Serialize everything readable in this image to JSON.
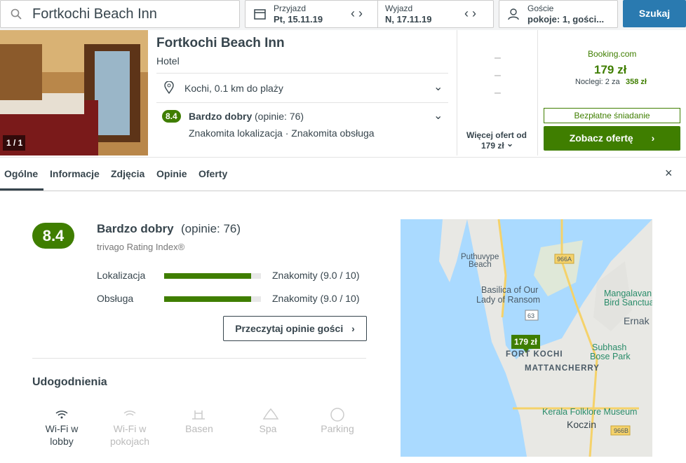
{
  "search": {
    "query": "Fortkochi Beach Inn",
    "checkin_label": "Przyjazd",
    "checkin": "Pt, 15.11.19",
    "checkout_label": "Wyjazd",
    "checkout": "N, 17.11.19",
    "guests_label": "Goście",
    "guests": "pokoje: 1, gości...",
    "button": "Szukaj"
  },
  "hotel": {
    "image_counter": "1 / 1",
    "name": "Fortkochi Beach Inn",
    "type": "Hotel",
    "location": "Kochi, 0.1 km do plaży",
    "rating": "8.4",
    "rating_text": "Bardzo dobry",
    "reviews": "(opinie: 76)",
    "highlights": "Znakomita lokalizacja · Znakomita obsługa",
    "more_offers": "Więcej ofert od",
    "more_price": "179 zł"
  },
  "offer": {
    "provider": "Booking.com",
    "price": "179 zł",
    "nights": "Noclegi: 2 za",
    "total": "358 zł",
    "perk": "Bezpłatne śniadanie",
    "button": "Zobacz ofertę"
  },
  "tabs": [
    "Ogólne",
    "Informacje",
    "Zdjęcia",
    "Opinie",
    "Oferty"
  ],
  "rating": {
    "score": "8.4",
    "text": "Bardzo dobry",
    "reviews": "(opinie: 76)",
    "index": "trivago Rating Index®",
    "rows": [
      {
        "name": "Lokalizacja",
        "score": 9.0,
        "max": 10,
        "label": "Znakomity (9.0 / 10)"
      },
      {
        "name": "Obsługa",
        "score": 9.0,
        "max": 10,
        "label": "Znakomity (9.0 / 10)"
      }
    ],
    "button": "Przeczytaj opinie gości"
  },
  "amenities": {
    "title": "Udogodnienia",
    "items": [
      "Wi-Fi w lobby",
      "Wi-Fi w pokojach",
      "Basen",
      "Spa",
      "Parking"
    ]
  },
  "map": {
    "labels": [
      "Puthuvype",
      "Beach",
      "966A",
      "Basilica of Our",
      "Lady of Ransom",
      "Mangalavan",
      "Bird Sanctua",
      "63",
      "Ernak",
      "179 zł",
      "Subhash",
      "Bose Park",
      "FORT KOCHI",
      "MATTANCHERRY",
      "Kerala Folklore Museum",
      "Koczin",
      "966B"
    ]
  }
}
